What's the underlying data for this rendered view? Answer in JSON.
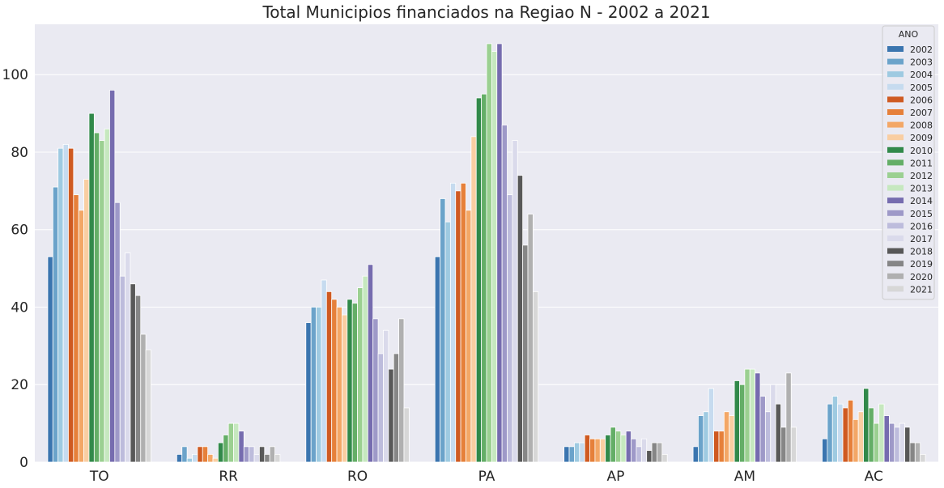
{
  "chart_data": {
    "type": "bar",
    "title": "Total Municipios financiados na Regiao N - 2002 a 2021",
    "xlabel": "",
    "ylabel": "",
    "ylim": [
      0,
      113
    ],
    "yticks": [
      0,
      20,
      40,
      60,
      80,
      100
    ],
    "grid": true,
    "legend_title": "ANO",
    "legend_position": "top-right",
    "categories": [
      "TO",
      "RR",
      "RO",
      "PA",
      "AP",
      "AM",
      "AC"
    ],
    "series": [
      {
        "name": "2002",
        "color": "#3b75af",
        "values": [
          53,
          2,
          36,
          53,
          4,
          4,
          6
        ]
      },
      {
        "name": "2003",
        "color": "#6ba3ca",
        "values": [
          71,
          4,
          40,
          68,
          4,
          12,
          15
        ]
      },
      {
        "name": "2004",
        "color": "#9ecae1",
        "values": [
          81,
          1,
          40,
          62,
          5,
          13,
          17
        ]
      },
      {
        "name": "2005",
        "color": "#c6dbef",
        "values": [
          82,
          2,
          47,
          72,
          5,
          19,
          15
        ]
      },
      {
        "name": "2006",
        "color": "#cf5a21",
        "values": [
          81,
          4,
          44,
          70,
          7,
          8,
          14
        ]
      },
      {
        "name": "2007",
        "color": "#e6803a",
        "values": [
          69,
          4,
          42,
          72,
          6,
          8,
          16
        ]
      },
      {
        "name": "2008",
        "color": "#f3a766",
        "values": [
          65,
          2,
          40,
          65,
          6,
          13,
          11
        ]
      },
      {
        "name": "2009",
        "color": "#f9cea2",
        "values": [
          73,
          1,
          38,
          84,
          6,
          12,
          13
        ]
      },
      {
        "name": "2010",
        "color": "#31894a",
        "values": [
          90,
          5,
          42,
          94,
          7,
          21,
          19
        ]
      },
      {
        "name": "2011",
        "color": "#64ae67",
        "values": [
          85,
          7,
          41,
          95,
          9,
          20,
          14
        ]
      },
      {
        "name": "2012",
        "color": "#9bd091",
        "values": [
          83,
          10,
          45,
          108,
          8,
          24,
          10
        ]
      },
      {
        "name": "2013",
        "color": "#c6e8bf",
        "values": [
          86,
          10,
          48,
          106,
          7,
          24,
          15
        ]
      },
      {
        "name": "2014",
        "color": "#766caf",
        "values": [
          96,
          8,
          51,
          108,
          8,
          23,
          12
        ]
      },
      {
        "name": "2015",
        "color": "#9e99c8",
        "values": [
          67,
          4,
          37,
          87,
          6,
          17,
          10
        ]
      },
      {
        "name": "2016",
        "color": "#bdbcdc",
        "values": [
          48,
          4,
          28,
          69,
          4,
          13,
          9
        ]
      },
      {
        "name": "2017",
        "color": "#dadaeb",
        "values": [
          54,
          2,
          34,
          83,
          6,
          20,
          10
        ]
      },
      {
        "name": "2018",
        "color": "#585858",
        "values": [
          46,
          4,
          24,
          74,
          3,
          15,
          9
        ]
      },
      {
        "name": "2019",
        "color": "#868686",
        "values": [
          43,
          2,
          28,
          56,
          5,
          9,
          5
        ]
      },
      {
        "name": "2020",
        "color": "#b0b0b0",
        "values": [
          33,
          4,
          37,
          64,
          5,
          23,
          5
        ]
      },
      {
        "name": "2021",
        "color": "#d7d7d7",
        "values": [
          29,
          2,
          14,
          44,
          2,
          9,
          2
        ]
      }
    ]
  }
}
